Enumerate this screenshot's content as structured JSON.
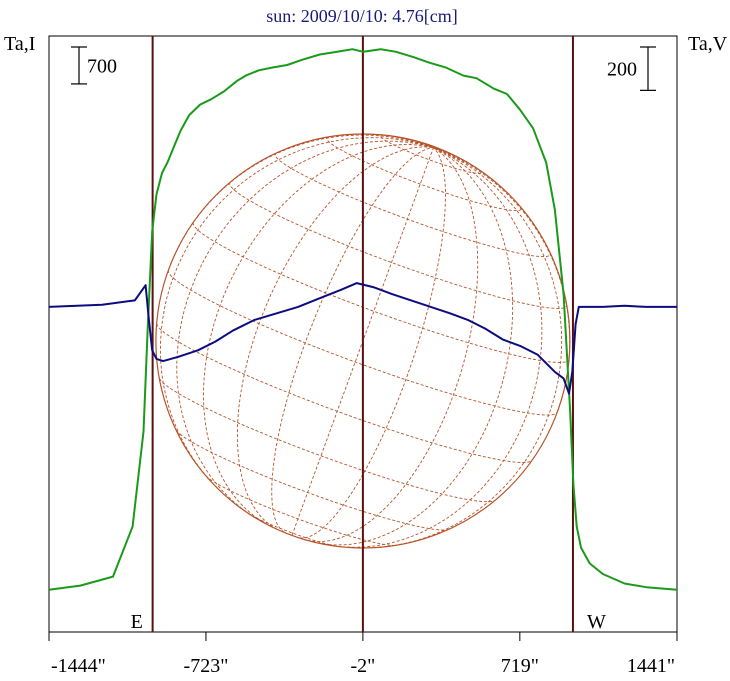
{
  "chart_data": {
    "type": "line",
    "title": "sun: 2009/10/10: 4.76[cm]",
    "left_axis_label": "Ta,I",
    "right_axis_label": "Ta,V",
    "x_tick_labels": [
      "-1444\"",
      "-723\"",
      "-2\"",
      "719\"",
      "1441\""
    ],
    "x_ticks": [
      -1444,
      -723,
      -2,
      719,
      1441
    ],
    "xlim": [
      -1444,
      1441
    ],
    "limb_markers": [
      {
        "label": "E",
        "x": -968
      },
      {
        "label": "",
        "x": -2
      },
      {
        "label": "W",
        "x": 963
      }
    ],
    "scale_bars": [
      {
        "label": "700",
        "axis": "left",
        "value": 700
      },
      {
        "label": "200",
        "axis": "right",
        "value": 200
      }
    ],
    "left_ylim": [
      -800,
      10500
    ],
    "right_ylim": [
      -1500,
      1250
    ],
    "colors": {
      "stokes_I": "#1a9a1a",
      "stokes_V": "#0c0c80",
      "markers": "#5a1010",
      "disk": "#b5542a"
    },
    "series": [
      {
        "name": "",
        "axis": "left",
        "x": [
          -1444,
          -1300,
          -1150,
          -1060,
          -1010,
          -990,
          -970,
          -950,
          -925,
          -900,
          -870,
          -840,
          -800,
          -750,
          -700,
          -640,
          -580,
          -540,
          -480,
          -420,
          -350,
          -280,
          -200,
          -120,
          -50,
          0,
          80,
          150,
          230,
          300,
          380,
          460,
          520,
          600,
          660,
          720,
          780,
          840,
          880,
          920,
          950,
          965,
          980,
          1000,
          1040,
          1100,
          1200,
          1300,
          1441
        ],
        "y": [
          0,
          80,
          250,
          1200,
          3000,
          5000,
          6800,
          7500,
          7900,
          8100,
          8400,
          8700,
          9000,
          9200,
          9300,
          9450,
          9650,
          9750,
          9850,
          9900,
          9950,
          10050,
          10150,
          10200,
          10250,
          10200,
          10250,
          10200,
          10100,
          10000,
          9900,
          9750,
          9700,
          9500,
          9400,
          9100,
          8750,
          8100,
          7200,
          5600,
          3400,
          2000,
          1200,
          800,
          500,
          300,
          120,
          50,
          0
        ]
      },
      {
        "name": "",
        "axis": "right",
        "x": [
          -1444,
          -1200,
          -1050,
          -1000,
          -985,
          -970,
          -950,
          -920,
          -850,
          -760,
          -680,
          -600,
          -500,
          -400,
          -300,
          -200,
          -100,
          -30,
          50,
          130,
          220,
          310,
          400,
          480,
          560,
          640,
          720,
          800,
          880,
          920,
          945,
          960,
          975,
          990,
          1020,
          1100,
          1200,
          1300,
          1441
        ],
        "y": [
          0,
          10,
          30,
          100,
          -60,
          -200,
          -240,
          -250,
          -230,
          -200,
          -160,
          -110,
          -60,
          -30,
          0,
          40,
          80,
          110,
          90,
          60,
          30,
          0,
          -30,
          -60,
          -100,
          -150,
          -180,
          -220,
          -300,
          -330,
          -400,
          -300,
          -80,
          0,
          0,
          0,
          5,
          0,
          0
        ]
      }
    ]
  }
}
